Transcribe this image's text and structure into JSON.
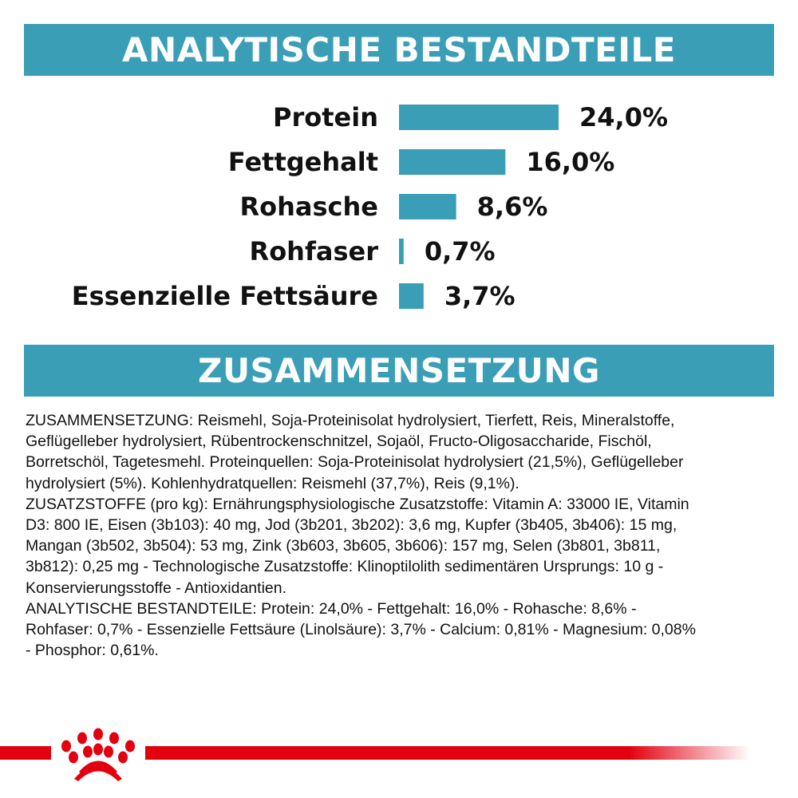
{
  "header1": "ANALYTISCHE BESTANDTEILE",
  "header2": "ZUSAMMENSETZUNG",
  "chart_data": {
    "type": "bar",
    "orientation": "horizontal",
    "categories": [
      "Protein",
      "Fettgehalt",
      "Rohasche",
      "Rohfaser",
      "Essenzielle Fettsäure"
    ],
    "values": [
      24.0,
      16.0,
      8.6,
      0.7,
      3.7
    ],
    "value_labels": [
      "24,0%",
      "16,0%",
      "8,6%",
      "0,7%",
      "3,7%"
    ],
    "unit": "%",
    "bar_color": "#3a9fb6",
    "grid": false,
    "axes_visible": false
  },
  "composition_lines": [
    "ZUSAMMENSETZUNG: Reismehl, Soja-Proteinisolat hydrolysiert, Tierfett, Reis, Mineralstoffe,",
    "Geflügelleber hydrolysiert, Rübentrockenschnitzel, Sojaöl, Fructo-Oligosaccharide, Fischöl,",
    "Borretschöl, Tagetesmehl. Proteinquellen: Soja-Proteinisolat hydrolysiert (21,5%), Geflügelleber",
    "hydrolysiert (5%). Kohlenhydratquellen: Reismehl (37,7%), Reis (9,1%).",
    "ZUSATZSTOFFE (pro kg): Ernährungsphysiologische Zusatzstoffe: Vitamin A: 33000 IE, Vitamin",
    "D3: 800 IE, Eisen (3b103): 40 mg, Jod (3b201, 3b202): 3,6 mg, Kupfer (3b405, 3b406): 15 mg,",
    "Mangan (3b502, 3b504): 53 mg, Zink (3b603, 3b605, 3b606): 157 mg, Selen (3b801, 3b811,",
    "3b812): 0,25 mg - Technologische Zusatzstoffe: Klinoptilolith sedimentären Ursprungs: 10 g -",
    "Konservierungsstoffe - Antioxidantien.",
    "ANALYTISCHE BESTANDTEILE: Protein: 24,0% - Fettgehalt: 16,0% - Rohasche: 8,6% -",
    "Rohfaser: 0,7% - Essenzielle Fettsäure (Linolsäure): 3,7% - Calcium: 0,81% - Magnesium: 0,08%",
    "- Phosphor: 0,61%."
  ],
  "brand": {
    "logo": "royal-canin-crown-logo",
    "color": "#e2000f"
  }
}
